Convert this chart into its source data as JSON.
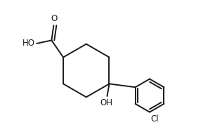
{
  "background_color": "#ffffff",
  "line_color": "#1a1a1a",
  "line_width": 1.4,
  "font_size": 8.5,
  "figsize": [
    3.06,
    1.98
  ],
  "dpi": 100,
  "xlim": [
    0,
    10
  ],
  "ylim": [
    0,
    6.5
  ]
}
